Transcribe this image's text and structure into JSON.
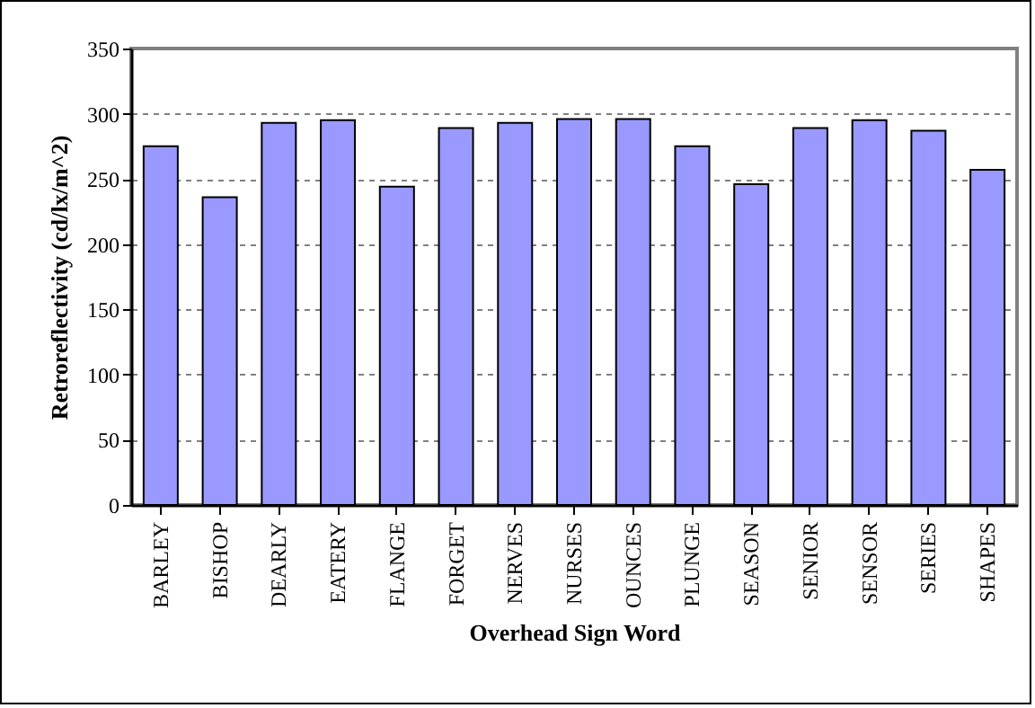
{
  "chart_data": {
    "type": "bar",
    "xlabel": "Overhead Sign Word",
    "ylabel": "Retroreflectivity (cd/lx/m^2)",
    "categories": [
      "BARLEY",
      "BISHOP",
      "DEARLY",
      "EATERY",
      "FLANGE",
      "FORGET",
      "NERVES",
      "NURSES",
      "OUNCES",
      "PLUNGE",
      "SEASON",
      "SENIOR",
      "SENSOR",
      "SERIES",
      "SHAPES"
    ],
    "values": [
      275,
      236,
      293,
      295,
      244,
      289,
      293,
      296,
      296,
      275,
      246,
      289,
      295,
      287,
      257
    ],
    "color": "#9999ff",
    "ylim": [
      0,
      350
    ],
    "yticks": [
      0,
      50,
      100,
      150,
      200,
      250,
      300,
      350
    ],
    "grid": "y"
  }
}
